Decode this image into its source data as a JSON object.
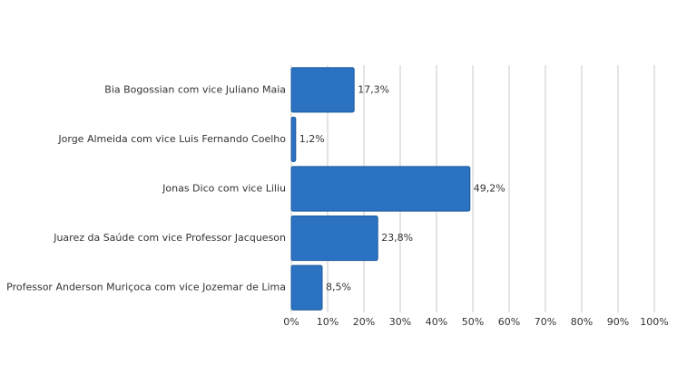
{
  "chart_data": {
    "type": "barh",
    "categories": [
      "Bia Bogossian com vice Juliano Maia",
      "Jorge Almeida com vice Luis Fernando Coelho",
      "Jonas Dico com vice Liliu",
      "Juarez da Saúde com vice Professor Jacqueson",
      "Professor Anderson Muriçoca com vice Jozemar de Lima"
    ],
    "values": [
      17.3,
      1.2,
      49.2,
      23.8,
      8.5
    ],
    "value_labels": [
      "17,3%",
      "1,2%",
      "49,2%",
      "23,8%",
      "8,5%"
    ],
    "color": "#2b73c2",
    "xlim": [
      0,
      100
    ],
    "xticks": [
      {
        "value": 0,
        "label": "0%"
      },
      {
        "value": 10,
        "label": "10%"
      },
      {
        "value": 20,
        "label": "20%"
      },
      {
        "value": 30,
        "label": "30%"
      },
      {
        "value": 40,
        "label": "40%"
      },
      {
        "value": 50,
        "label": "50%"
      },
      {
        "value": 60,
        "label": "60%"
      },
      {
        "value": 70,
        "label": "70%"
      },
      {
        "value": 80,
        "label": "80%"
      },
      {
        "value": 90,
        "label": "90%"
      },
      {
        "value": 100,
        "label": "100%"
      }
    ],
    "grid": true
  }
}
